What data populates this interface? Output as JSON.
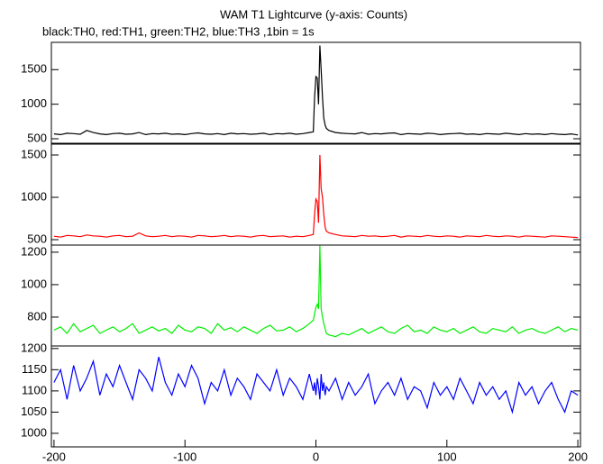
{
  "chart_data": [
    {
      "type": "line",
      "title": "WAM T1 Lightcurve (y-axis: Counts)",
      "subtitle": "black:TH0, red:TH1, green:TH2, blue:TH3 ,1bin = 1s",
      "x": [
        -200,
        -195,
        -190,
        -185,
        -180,
        -175,
        -170,
        -165,
        -160,
        -155,
        -150,
        -145,
        -140,
        -135,
        -130,
        -125,
        -120,
        -115,
        -110,
        -105,
        -100,
        -95,
        -90,
        -85,
        -80,
        -75,
        -70,
        -65,
        -60,
        -55,
        -50,
        -45,
        -40,
        -35,
        -30,
        -25,
        -20,
        -15,
        -10,
        -5,
        -2,
        -1,
        0,
        1,
        2,
        3,
        4,
        5,
        6,
        7,
        8,
        10,
        15,
        20,
        25,
        30,
        35,
        40,
        45,
        50,
        55,
        60,
        65,
        70,
        75,
        80,
        85,
        90,
        95,
        100,
        105,
        110,
        115,
        120,
        125,
        130,
        135,
        140,
        145,
        150,
        155,
        160,
        165,
        170,
        175,
        180,
        185,
        190,
        195,
        200
      ],
      "series": [
        {
          "color": "#000000",
          "values": [
            570,
            560,
            580,
            575,
            565,
            620,
            590,
            570,
            560,
            575,
            580,
            565,
            570,
            590,
            560,
            575,
            570,
            580,
            565,
            570,
            560,
            575,
            585,
            570,
            565,
            575,
            560,
            580,
            570,
            575,
            565,
            570,
            580,
            560,
            575,
            570,
            580,
            565,
            575,
            590,
            600,
            1100,
            1400,
            1380,
            1000,
            1850,
            1500,
            1100,
            800,
            700,
            650,
            620,
            590,
            580,
            575,
            570,
            590,
            565,
            575,
            570,
            580,
            585,
            560,
            575,
            570,
            565,
            580,
            575,
            560,
            570,
            575,
            580,
            565,
            570,
            560,
            575,
            570,
            565,
            580,
            570,
            560,
            575,
            565,
            570,
            560,
            575,
            565,
            560,
            570,
            555
          ]
        }
      ],
      "xlim": [
        -202,
        202
      ],
      "ylim": [
        435,
        1895
      ],
      "yticks": [
        500,
        1000,
        1500
      ]
    },
    {
      "type": "line",
      "x": [
        -200,
        -195,
        -190,
        -185,
        -180,
        -175,
        -170,
        -165,
        -160,
        -155,
        -150,
        -145,
        -140,
        -135,
        -130,
        -125,
        -120,
        -115,
        -110,
        -105,
        -100,
        -95,
        -90,
        -85,
        -80,
        -75,
        -70,
        -65,
        -60,
        -55,
        -50,
        -45,
        -40,
        -35,
        -30,
        -25,
        -20,
        -15,
        -10,
        -5,
        -2,
        -1,
        0,
        1,
        2,
        3,
        4,
        5,
        6,
        7,
        8,
        10,
        15,
        20,
        25,
        30,
        35,
        40,
        45,
        50,
        55,
        60,
        65,
        70,
        75,
        80,
        85,
        90,
        95,
        100,
        105,
        110,
        115,
        120,
        125,
        130,
        135,
        140,
        145,
        150,
        155,
        160,
        165,
        170,
        175,
        180,
        185,
        190,
        195,
        200
      ],
      "series": [
        {
          "color": "#ff0000",
          "values": [
            540,
            530,
            550,
            545,
            535,
            555,
            545,
            540,
            530,
            545,
            550,
            535,
            540,
            580,
            545,
            535,
            540,
            550,
            535,
            545,
            540,
            530,
            550,
            545,
            535,
            540,
            550,
            535,
            545,
            540,
            530,
            545,
            550,
            535,
            540,
            545,
            530,
            540,
            535,
            550,
            560,
            800,
            980,
            950,
            700,
            1500,
            1100,
            1000,
            800,
            650,
            600,
            580,
            560,
            545,
            540,
            535,
            550,
            540,
            545,
            535,
            540,
            550,
            530,
            545,
            540,
            535,
            550,
            540,
            535,
            545,
            540,
            530,
            545,
            540,
            535,
            550,
            540,
            535,
            545,
            540,
            530,
            545,
            540,
            535,
            530,
            545,
            540,
            535,
            530,
            525
          ]
        }
      ],
      "xlim": [
        -202,
        202
      ],
      "ylim": [
        436,
        1628
      ],
      "yticks": [
        500,
        1000,
        1500
      ]
    },
    {
      "type": "line",
      "x": [
        -200,
        -195,
        -190,
        -185,
        -180,
        -175,
        -170,
        -165,
        -160,
        -155,
        -150,
        -145,
        -140,
        -135,
        -130,
        -125,
        -120,
        -115,
        -110,
        -105,
        -100,
        -95,
        -90,
        -85,
        -80,
        -75,
        -70,
        -65,
        -60,
        -55,
        -50,
        -45,
        -40,
        -35,
        -30,
        -25,
        -20,
        -15,
        -10,
        -5,
        -2,
        -1,
        0,
        1,
        2,
        3,
        4,
        5,
        6,
        7,
        8,
        10,
        15,
        20,
        25,
        30,
        35,
        40,
        45,
        50,
        55,
        60,
        65,
        70,
        75,
        80,
        85,
        90,
        95,
        100,
        105,
        110,
        115,
        120,
        125,
        130,
        135,
        140,
        145,
        150,
        155,
        160,
        165,
        170,
        175,
        180,
        185,
        190,
        195,
        200
      ],
      "series": [
        {
          "color": "#00ee00",
          "values": [
            720,
            740,
            700,
            760,
            710,
            730,
            750,
            700,
            720,
            740,
            710,
            730,
            760,
            700,
            720,
            740,
            715,
            730,
            700,
            750,
            720,
            710,
            740,
            730,
            700,
            760,
            720,
            735,
            710,
            740,
            720,
            700,
            730,
            750,
            715,
            720,
            740,
            710,
            730,
            760,
            780,
            820,
            860,
            880,
            850,
            1240,
            850,
            800,
            760,
            730,
            700,
            690,
            680,
            700,
            690,
            710,
            730,
            700,
            720,
            740,
            710,
            700,
            730,
            750,
            710,
            720,
            700,
            740,
            720,
            710,
            730,
            700,
            720,
            740,
            710,
            700,
            730,
            720,
            710,
            740,
            700,
            720,
            730,
            710,
            700,
            720,
            740,
            710,
            730,
            720
          ]
        }
      ],
      "xlim": [
        -202,
        202
      ],
      "ylim": [
        622,
        1244
      ],
      "yticks": [
        800,
        1000,
        1200
      ]
    },
    {
      "type": "line",
      "x": [
        -200,
        -195,
        -190,
        -185,
        -180,
        -175,
        -170,
        -165,
        -160,
        -155,
        -150,
        -145,
        -140,
        -135,
        -130,
        -125,
        -120,
        -115,
        -110,
        -105,
        -100,
        -95,
        -90,
        -85,
        -80,
        -75,
        -70,
        -65,
        -60,
        -55,
        -50,
        -45,
        -40,
        -35,
        -30,
        -25,
        -20,
        -15,
        -10,
        -5,
        -2,
        -1,
        0,
        1,
        2,
        3,
        4,
        5,
        6,
        7,
        8,
        10,
        15,
        20,
        25,
        30,
        35,
        40,
        45,
        50,
        55,
        60,
        65,
        70,
        75,
        80,
        85,
        90,
        95,
        100,
        105,
        110,
        115,
        120,
        125,
        130,
        135,
        140,
        145,
        150,
        155,
        160,
        165,
        170,
        175,
        180,
        185,
        190,
        195,
        200
      ],
      "series": [
        {
          "color": "#0000ff",
          "values": [
            1120,
            1150,
            1080,
            1160,
            1100,
            1130,
            1170,
            1090,
            1140,
            1110,
            1160,
            1120,
            1080,
            1150,
            1130,
            1100,
            1180,
            1120,
            1090,
            1140,
            1110,
            1160,
            1130,
            1070,
            1120,
            1100,
            1150,
            1090,
            1130,
            1110,
            1080,
            1140,
            1120,
            1100,
            1150,
            1090,
            1130,
            1110,
            1080,
            1140,
            1100,
            1120,
            1090,
            1130,
            1110,
            1080,
            1140,
            1100,
            1120,
            1090,
            1110,
            1100,
            1130,
            1080,
            1120,
            1090,
            1110,
            1140,
            1070,
            1100,
            1120,
            1090,
            1130,
            1080,
            1110,
            1100,
            1060,
            1120,
            1090,
            1110,
            1080,
            1130,
            1100,
            1070,
            1120,
            1090,
            1110,
            1080,
            1100,
            1050,
            1120,
            1090,
            1110,
            1070,
            1100,
            1120,
            1080,
            1050,
            1100,
            1090
          ]
        }
      ],
      "xlim": [
        -202,
        202
      ],
      "ylim": [
        968,
        1206
      ],
      "yticks": [
        1000,
        1050,
        1100,
        1150,
        1200
      ],
      "xticks": [
        -200,
        -100,
        0,
        100,
        200
      ]
    }
  ]
}
